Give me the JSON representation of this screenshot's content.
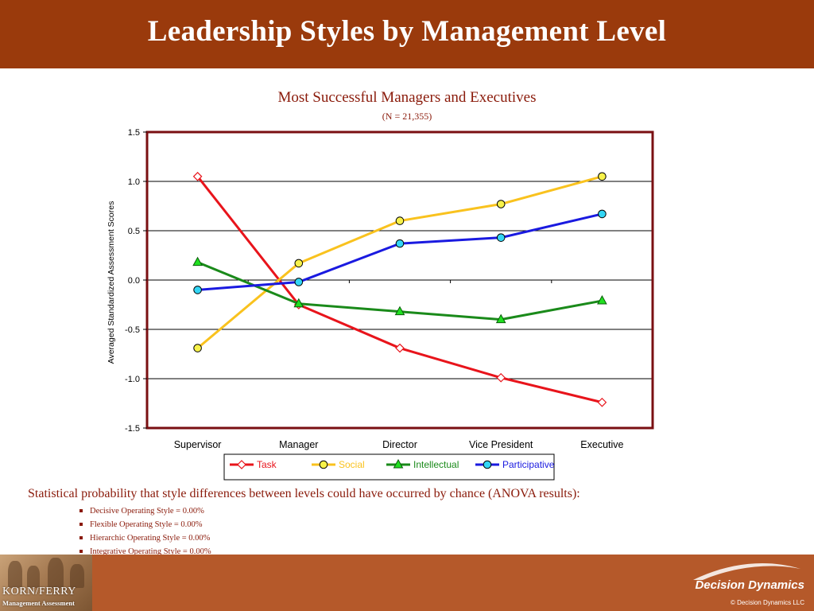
{
  "header": {
    "title": "Leadership Styles by Management Level"
  },
  "chart_data": {
    "type": "line",
    "title": "Most Successful Managers and Executives",
    "subtitle": "(N = 21,355)",
    "xlabel": "",
    "ylabel": "Averaged Standardized Assessment Scores",
    "categories": [
      "Supervisor",
      "Manager",
      "Director",
      "Vice President",
      "Executive"
    ],
    "ylim": [
      -1.5,
      1.5
    ],
    "yticks": [
      1.5,
      1.0,
      0.5,
      0.0,
      -0.5,
      -1.0,
      -1.5
    ],
    "ytick_labels": [
      "1.5",
      "1.0",
      "0.5",
      "0.0",
      "-0.5",
      "-1.0",
      "-1.5"
    ],
    "grid": true,
    "legend_position": "bottom",
    "series": [
      {
        "name": "Task",
        "values": [
          1.05,
          -0.25,
          -0.69,
          -0.99,
          -1.24
        ],
        "color": "#e8141b",
        "marker": "diamond"
      },
      {
        "name": "Social",
        "values": [
          -0.69,
          0.17,
          0.6,
          0.77,
          1.05
        ],
        "color": "#f9c21e",
        "marker": "circle"
      },
      {
        "name": "Intellectual",
        "values": [
          0.18,
          -0.24,
          -0.32,
          -0.4,
          -0.21
        ],
        "color": "#1a8a1a",
        "marker": "triangle"
      },
      {
        "name": "Participative",
        "values": [
          -0.1,
          -0.02,
          0.37,
          0.43,
          0.67
        ],
        "color": "#1a1ae0",
        "marker": "circle"
      }
    ]
  },
  "stats": {
    "heading": "Statistical probability that style differences between levels could have occurred by chance (ANOVA results):",
    "items": [
      "Decisive Operating Style = 0.00%",
      "Flexible Operating Style = 0.00%",
      "Hierarchic Operating Style = 0.00%",
      "Integrative Operating Style = 0.00%"
    ]
  },
  "footer": {
    "logo_line1": "KORN/FERRY",
    "logo_line2": "Management Assessment",
    "brand": "Decision Dynamics",
    "copyright": "© Decision Dynamics LLC"
  }
}
